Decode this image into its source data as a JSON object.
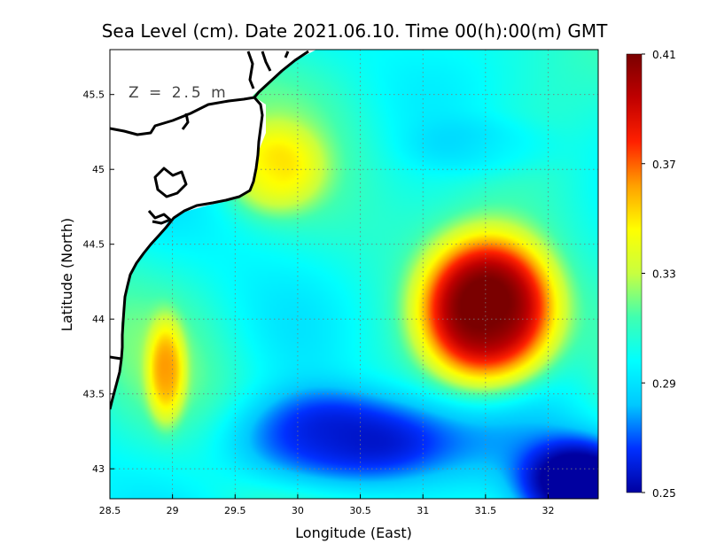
{
  "chart_data": {
    "type": "heatmap",
    "title": "Sea Level (cm). Date 2021.06.10. Time 00(h):00(m) GMT",
    "xlabel": "Longitude (East)",
    "ylabel": "Latitude (North)",
    "annotation": "Z = 2.5 m",
    "xlim": [
      28.5,
      32.4
    ],
    "ylim": [
      42.8,
      45.8
    ],
    "x_ticks": [
      "28.5",
      "29",
      "29.5",
      "30",
      "30.5",
      "31",
      "31.5",
      "32"
    ],
    "y_ticks": [
      "43",
      "43.5",
      "44",
      "44.5",
      "45",
      "45.5"
    ],
    "grid": true,
    "colorbar": {
      "min": 0.25,
      "max": 0.41,
      "ticks": [
        "0.25",
        "0.29",
        "0.33",
        "0.37",
        "0.41"
      ],
      "colors": [
        "#0000a0",
        "#0030ff",
        "#00c8ff",
        "#00ffff",
        "#40ffb0",
        "#c8ff40",
        "#ffff00",
        "#ffa000",
        "#ff2000",
        "#c00000",
        "#7a0000"
      ]
    },
    "field": {
      "background_value": 0.305,
      "features": [
        {
          "lon": 31.52,
          "lat": 44.05,
          "value": 0.41,
          "note": "warm anomaly (maximum)"
        },
        {
          "lon": 30.3,
          "lat": 43.2,
          "value": 0.27,
          "note": "low"
        },
        {
          "lon": 32.3,
          "lat": 42.85,
          "value": 0.25,
          "note": "minimum"
        },
        {
          "lon": 31.5,
          "lat": 45.15,
          "value": 0.295,
          "note": "weak low"
        },
        {
          "lon": 28.95,
          "lat": 43.65,
          "value": 0.345,
          "note": "coastal high"
        },
        {
          "lon": 29.8,
          "lat": 45.0,
          "value": 0.335,
          "note": "coastal high"
        }
      ]
    }
  }
}
